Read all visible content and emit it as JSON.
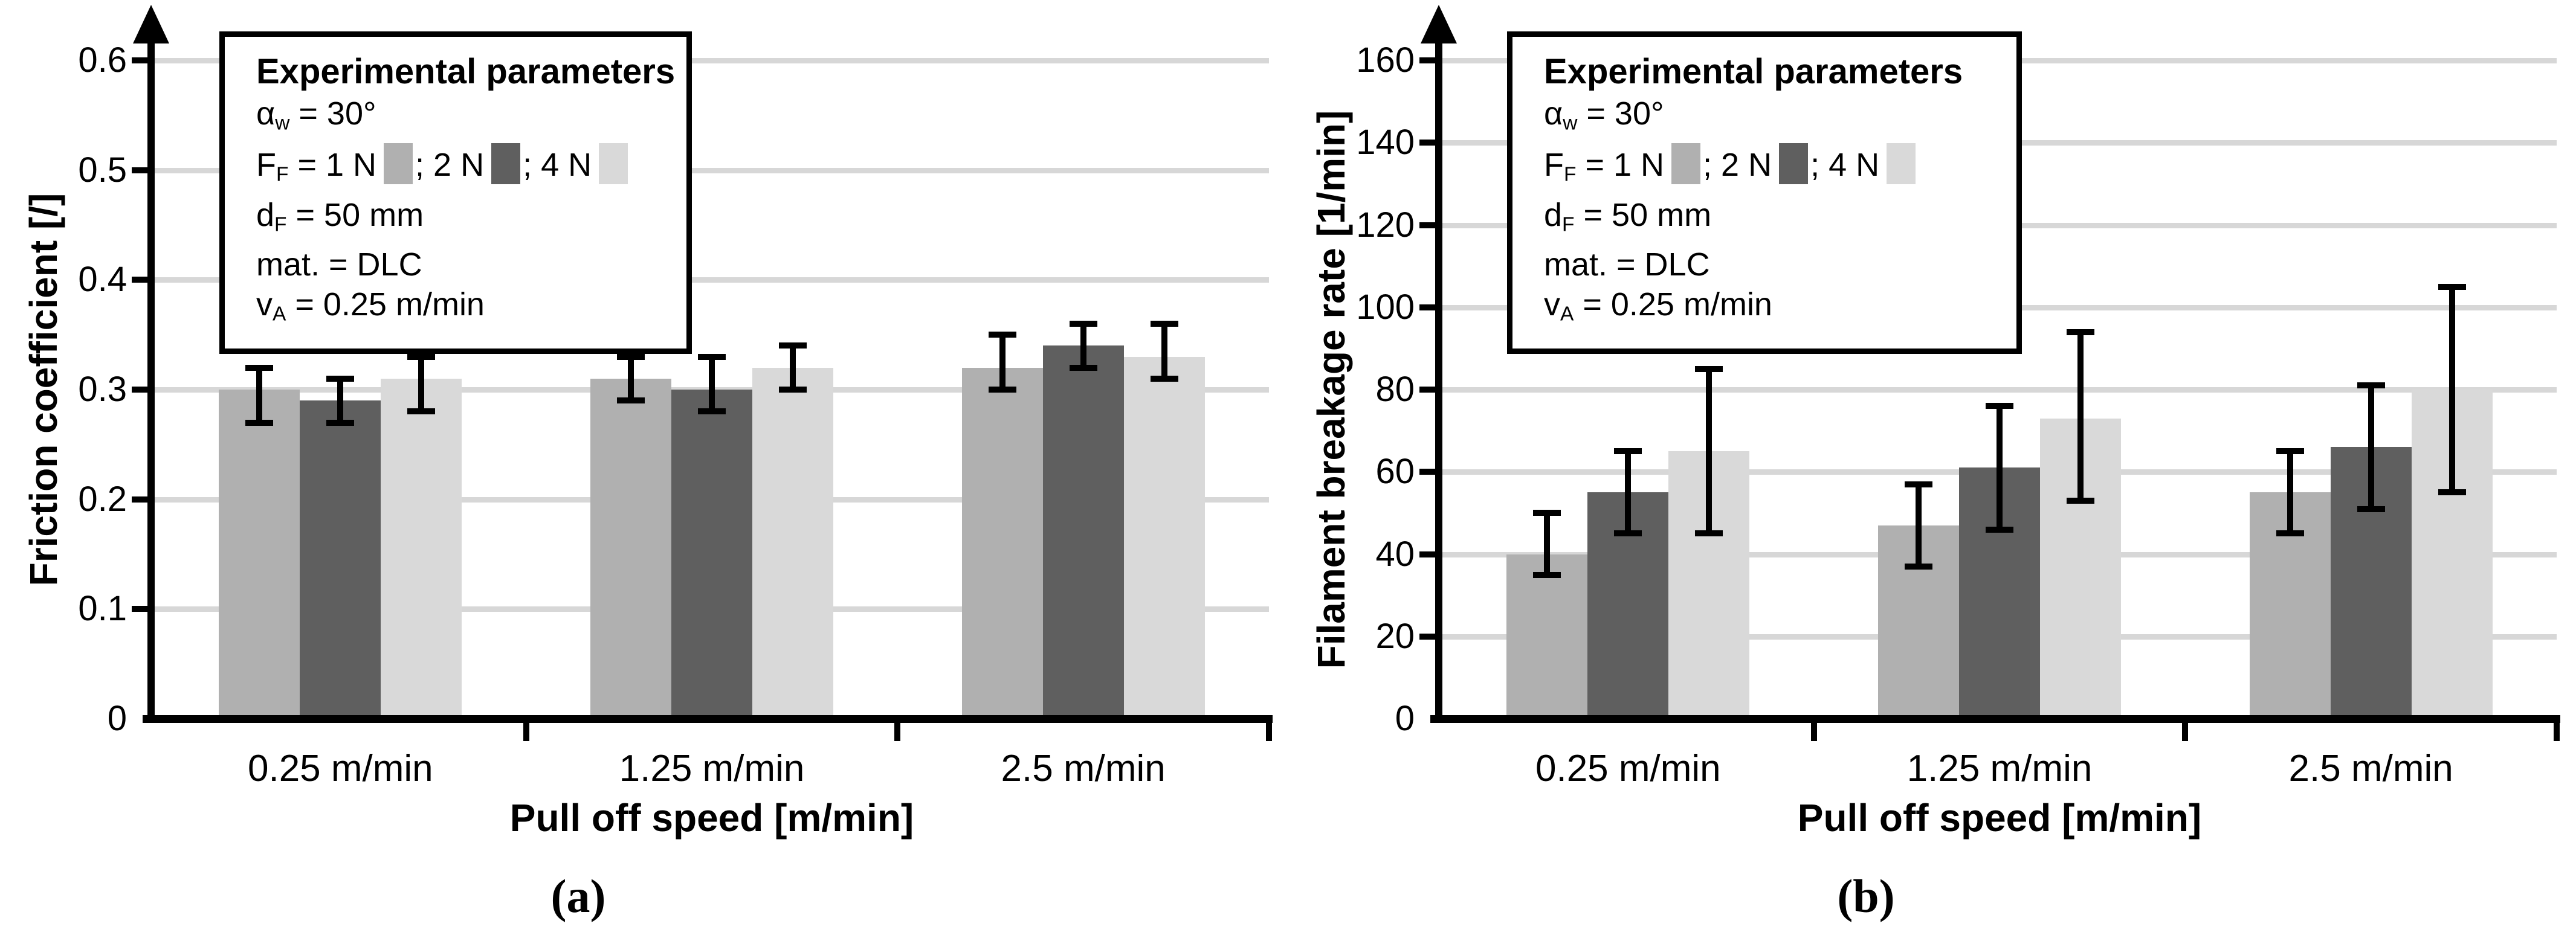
{
  "figure": {
    "background": "#ffffff",
    "text_color": "#000000",
    "gridline_color": "#d7d7d7",
    "axis_color": "#000000"
  },
  "series_colors": {
    "1 N": "#b0b0b0",
    "2 N": "#5f5f5f",
    "4 N": "#d9d9d9"
  },
  "legend": {
    "title": "Experimental parameters",
    "rows": [
      {
        "segments": [
          {
            "text": "α"
          },
          {
            "sub": "w"
          },
          {
            "text": " = 30°"
          }
        ]
      },
      {
        "segments": [
          {
            "text": "F"
          },
          {
            "sub": "F"
          },
          {
            "text": " = 1 N"
          },
          {
            "swatch": "1 N"
          },
          {
            "text": "; 2 N"
          },
          {
            "swatch": "2 N"
          },
          {
            "text": "; 4 N"
          },
          {
            "swatch": "4 N"
          }
        ]
      },
      {
        "segments": [
          {
            "text": "d"
          },
          {
            "sub": "F"
          },
          {
            "text": " = 50 mm"
          }
        ]
      },
      {
        "segments": [
          {
            "text": "mat. = DLC"
          }
        ]
      },
      {
        "segments": [
          {
            "text": "v"
          },
          {
            "sub": "A"
          },
          {
            "text": " = 0.25 m/min"
          }
        ]
      }
    ]
  },
  "chart_data": [
    {
      "id": "a",
      "type": "bar",
      "caption": "(a)",
      "title": "",
      "xlabel": "Pull off speed [m/min]",
      "ylabel": "Friction coefficient [/]",
      "categories": [
        "0.25 m/min",
        "1.25 m/min",
        "2.5 m/min"
      ],
      "ytick_values": [
        0,
        0.1,
        0.2,
        0.3,
        0.4,
        0.5,
        0.6
      ],
      "ytick_labels": [
        "0",
        "0.1",
        "0.2",
        "0.3",
        "0.4",
        "0.5",
        "0.6"
      ],
      "ylim": [
        0,
        0.65
      ],
      "grid": true,
      "legend_position": "top-left-box",
      "series": [
        {
          "name": "1 N",
          "values": [
            0.3,
            0.31,
            0.32
          ],
          "err_low": [
            0.27,
            0.29,
            0.3
          ],
          "err_high": [
            0.32,
            0.33,
            0.35
          ]
        },
        {
          "name": "2 N",
          "values": [
            0.29,
            0.3,
            0.34
          ],
          "err_low": [
            0.27,
            0.28,
            0.32
          ],
          "err_high": [
            0.31,
            0.33,
            0.36
          ]
        },
        {
          "name": "4 N",
          "values": [
            0.31,
            0.32,
            0.33
          ],
          "err_low": [
            0.28,
            0.3,
            0.31
          ],
          "err_high": [
            0.33,
            0.34,
            0.36
          ]
        }
      ]
    },
    {
      "id": "b",
      "type": "bar",
      "caption": "(b)",
      "title": "",
      "xlabel": "Pull off speed [m/min]",
      "ylabel": "Filament breakage rate [1/min]",
      "categories": [
        "0.25 m/min",
        "1.25 m/min",
        "2.5 m/min"
      ],
      "ytick_values": [
        0,
        20,
        40,
        60,
        80,
        100,
        120,
        140,
        160
      ],
      "ytick_labels": [
        "0",
        "20",
        "40",
        "60",
        "80",
        "100",
        "120",
        "140",
        "160"
      ],
      "ylim": [
        0,
        172
      ],
      "grid": true,
      "legend_position": "top-left-box",
      "series": [
        {
          "name": "1 N",
          "values": [
            40,
            47,
            55
          ],
          "err_low": [
            35,
            37,
            45
          ],
          "err_high": [
            50,
            57,
            65
          ]
        },
        {
          "name": "2 N",
          "values": [
            55,
            61,
            66
          ],
          "err_low": [
            45,
            46,
            51
          ],
          "err_high": [
            65,
            76,
            81
          ]
        },
        {
          "name": "4 N",
          "values": [
            65,
            73,
            80
          ],
          "err_low": [
            45,
            53,
            55
          ],
          "err_high": [
            85,
            94,
            105
          ]
        }
      ]
    }
  ]
}
